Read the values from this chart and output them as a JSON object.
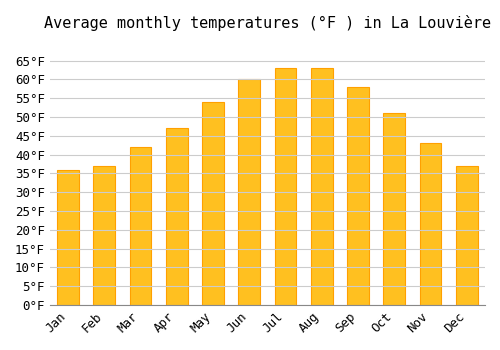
{
  "title": "Average monthly temperatures (°F ) in La Louvière",
  "months": [
    "Jan",
    "Feb",
    "Mar",
    "Apr",
    "May",
    "Jun",
    "Jul",
    "Aug",
    "Sep",
    "Oct",
    "Nov",
    "Dec"
  ],
  "values": [
    36,
    37,
    42,
    47,
    54,
    60,
    63,
    63,
    58,
    51,
    43,
    37
  ],
  "bar_color": "#FFC020",
  "bar_edge_color": "#FFA000",
  "background_color": "#FFFFFF",
  "grid_color": "#CCCCCC",
  "ylim": [
    0,
    70
  ],
  "yticks": [
    0,
    5,
    10,
    15,
    20,
    25,
    30,
    35,
    40,
    45,
    50,
    55,
    60,
    65
  ],
  "ylabel_suffix": "°F",
  "title_fontsize": 11,
  "tick_fontsize": 9,
  "font_family": "monospace"
}
